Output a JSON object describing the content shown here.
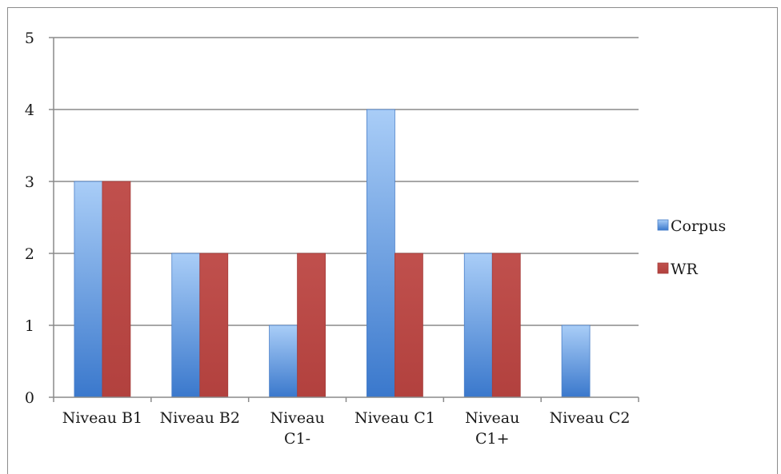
{
  "chart_data": {
    "type": "bar",
    "categories": [
      "Niveau B1",
      "Niveau B2",
      "Niveau C1-",
      "Niveau C1",
      "Niveau C1+",
      "Niveau C2"
    ],
    "category_lines": [
      [
        "Niveau B1"
      ],
      [
        "Niveau B2"
      ],
      [
        "Niveau",
        "C1-"
      ],
      [
        "Niveau C1"
      ],
      [
        "Niveau",
        "C1+"
      ],
      [
        "Niveau C2"
      ]
    ],
    "series": [
      {
        "name": "Corpus",
        "values": [
          3,
          2,
          1,
          4,
          2,
          1
        ],
        "color": "#5b8fd9"
      },
      {
        "name": "WR",
        "values": [
          3,
          2,
          2,
          2,
          2,
          0
        ],
        "color": "#c0504d"
      }
    ],
    "ylim": [
      0,
      5
    ],
    "yticks": [
      "0",
      "1",
      "2",
      "3",
      "4",
      "5"
    ],
    "grid": true,
    "legend_position": "right"
  }
}
